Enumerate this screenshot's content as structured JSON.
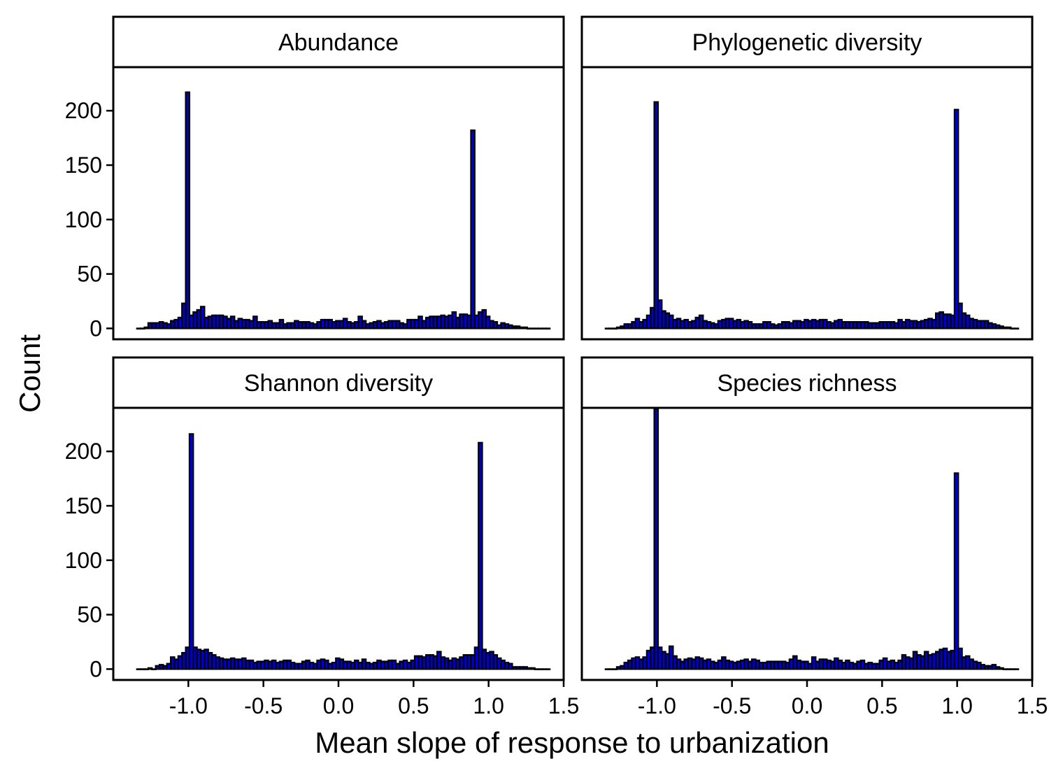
{
  "chart_data": {
    "type": "bar",
    "xlabel": "Mean slope of response to urbanization",
    "ylabel": "Count",
    "xlim": [
      -1.5,
      1.5
    ],
    "ylim": [
      -10,
      240
    ],
    "x_ticks": [
      -1.0,
      -0.5,
      0.0,
      0.5,
      1.0,
      1.5
    ],
    "x_tick_labels": [
      "-1.0",
      "-0.5",
      "0.0",
      "0.5",
      "1.0",
      "1.5"
    ],
    "y_ticks": [
      0,
      50,
      100,
      150,
      200
    ],
    "y_tick_labels": [
      "0",
      "50",
      "100",
      "150",
      "200"
    ],
    "grid": false,
    "bar_fill": "#0000cc",
    "bar_edge": "#000000",
    "bin_x": [
      -1.33,
      -1.305,
      -1.28,
      -1.255,
      -1.23,
      -1.205,
      -1.18,
      -1.155,
      -1.13,
      -1.105,
      -1.08,
      -1.055,
      -1.03,
      -1.005,
      -0.98,
      -0.955,
      -0.93,
      -0.905,
      -0.88,
      -0.855,
      -0.83,
      -0.805,
      -0.78,
      -0.755,
      -0.73,
      -0.705,
      -0.68,
      -0.655,
      -0.63,
      -0.605,
      -0.58,
      -0.555,
      -0.53,
      -0.505,
      -0.48,
      -0.455,
      -0.43,
      -0.405,
      -0.38,
      -0.355,
      -0.33,
      -0.305,
      -0.28,
      -0.255,
      -0.23,
      -0.205,
      -0.18,
      -0.155,
      -0.13,
      -0.105,
      -0.08,
      -0.055,
      -0.03,
      -0.005,
      0.02,
      0.045,
      0.07,
      0.095,
      0.12,
      0.145,
      0.17,
      0.195,
      0.22,
      0.245,
      0.27,
      0.295,
      0.32,
      0.345,
      0.37,
      0.395,
      0.42,
      0.445,
      0.47,
      0.495,
      0.52,
      0.545,
      0.57,
      0.595,
      0.62,
      0.645,
      0.67,
      0.695,
      0.72,
      0.745,
      0.77,
      0.795,
      0.82,
      0.845,
      0.87,
      0.895,
      0.92,
      0.945,
      0.97,
      0.995,
      1.02,
      1.045,
      1.07,
      1.095,
      1.12,
      1.145,
      1.17,
      1.195,
      1.22,
      1.245,
      1.27,
      1.295,
      1.32,
      1.345,
      1.37,
      1.395
    ],
    "panels": [
      {
        "title": "Abundance",
        "counts": [
          0,
          0,
          1,
          5,
          5,
          5,
          6,
          5,
          4,
          7,
          8,
          10,
          23,
          217,
          12,
          15,
          17,
          20,
          10,
          11,
          12,
          12,
          12,
          11,
          9,
          11,
          7,
          9,
          8,
          8,
          7,
          11,
          6,
          6,
          6,
          7,
          5,
          5,
          8,
          4,
          5,
          5,
          7,
          6,
          6,
          6,
          5,
          4,
          6,
          8,
          8,
          8,
          6,
          7,
          7,
          9,
          6,
          5,
          6,
          11,
          7,
          4,
          5,
          6,
          7,
          5,
          6,
          7,
          7,
          7,
          5,
          4,
          8,
          8,
          8,
          11,
          7,
          10,
          11,
          11,
          11,
          12,
          11,
          12,
          15,
          10,
          13,
          13,
          12,
          182,
          12,
          15,
          17,
          11,
          7,
          6,
          3,
          5,
          4,
          3,
          2,
          2,
          1,
          1,
          0,
          0,
          0,
          0,
          0,
          0
        ]
      },
      {
        "title": "Phylogenetic diversity",
        "counts": [
          0,
          0,
          0,
          1,
          2,
          4,
          4,
          6,
          9,
          6,
          8,
          12,
          19,
          208,
          26,
          16,
          14,
          12,
          8,
          9,
          7,
          8,
          6,
          7,
          10,
          12,
          7,
          6,
          5,
          4,
          7,
          8,
          9,
          9,
          7,
          8,
          6,
          7,
          6,
          4,
          4,
          4,
          6,
          6,
          4,
          3,
          4,
          6,
          6,
          5,
          7,
          7,
          6,
          8,
          7,
          8,
          7,
          8,
          8,
          6,
          5,
          7,
          8,
          6,
          6,
          6,
          6,
          6,
          6,
          6,
          5,
          5,
          5,
          6,
          6,
          6,
          6,
          5,
          8,
          6,
          8,
          7,
          7,
          6,
          7,
          8,
          9,
          8,
          14,
          15,
          13,
          13,
          12,
          201,
          23,
          14,
          12,
          9,
          8,
          7,
          7,
          7,
          5,
          4,
          3,
          2,
          1,
          1,
          0,
          0
        ]
      },
      {
        "title": "Shannon diversity",
        "counts": [
          0,
          0,
          0,
          1,
          0,
          3,
          4,
          3,
          5,
          11,
          9,
          12,
          15,
          20,
          216,
          20,
          18,
          17,
          18,
          15,
          13,
          11,
          10,
          9,
          9,
          10,
          9,
          9,
          10,
          8,
          8,
          6,
          7,
          7,
          8,
          7,
          8,
          6,
          7,
          8,
          8,
          6,
          5,
          5,
          7,
          8,
          6,
          5,
          8,
          9,
          8,
          5,
          6,
          10,
          9,
          7,
          7,
          6,
          8,
          6,
          9,
          6,
          5,
          6,
          8,
          7,
          7,
          8,
          8,
          5,
          7,
          8,
          6,
          8,
          12,
          12,
          11,
          13,
          13,
          12,
          16,
          11,
          10,
          8,
          10,
          9,
          11,
          13,
          13,
          13,
          20,
          208,
          18,
          15,
          16,
          13,
          10,
          8,
          6,
          5,
          2,
          2,
          2,
          2,
          1,
          1,
          0,
          0,
          0,
          0
        ]
      },
      {
        "title": "Species richness",
        "counts": [
          0,
          0,
          0,
          2,
          3,
          6,
          8,
          10,
          11,
          9,
          11,
          17,
          20,
          239,
          20,
          16,
          14,
          21,
          12,
          9,
          7,
          9,
          10,
          9,
          11,
          10,
          8,
          9,
          7,
          6,
          8,
          11,
          8,
          7,
          6,
          7,
          8,
          9,
          7,
          9,
          8,
          6,
          6,
          7,
          7,
          7,
          7,
          7,
          6,
          9,
          12,
          8,
          7,
          7,
          5,
          11,
          7,
          9,
          9,
          8,
          7,
          10,
          8,
          6,
          8,
          6,
          5,
          7,
          8,
          5,
          6,
          5,
          5,
          8,
          10,
          7,
          8,
          6,
          8,
          13,
          11,
          10,
          16,
          13,
          12,
          16,
          13,
          14,
          16,
          18,
          19,
          16,
          17,
          180,
          19,
          11,
          12,
          9,
          7,
          6,
          4,
          3,
          3,
          4,
          2,
          1,
          0,
          0,
          0,
          0
        ]
      }
    ]
  }
}
